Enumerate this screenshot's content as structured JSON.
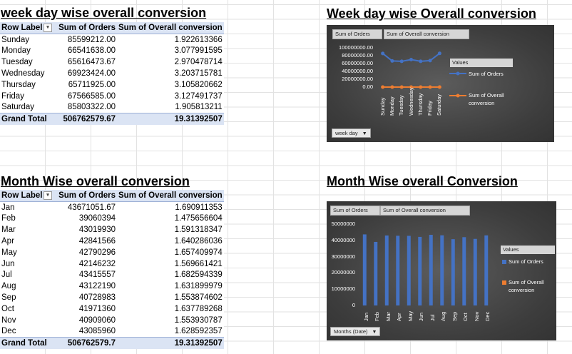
{
  "weekday_section": {
    "title": "week day wise overall conversion",
    "headers": [
      "Row Labels",
      "Sum of Orders",
      "Sum of Overall conversion"
    ],
    "rows": [
      [
        "Sunday",
        "85599212.00",
        "1.922613366"
      ],
      [
        "Monday",
        "66541638.00",
        "3.077991595"
      ],
      [
        "Tuesday",
        "65616473.67",
        "2.970478714"
      ],
      [
        "Wednesday",
        "69923424.00",
        "3.203715781"
      ],
      [
        "Thursday",
        "65711925.00",
        "3.105820662"
      ],
      [
        "Friday",
        "67566585.00",
        "3.127491737"
      ],
      [
        "Saturday",
        "85803322.00",
        "1.905813211"
      ]
    ],
    "total": [
      "Grand Total",
      "506762579.67",
      "19.31392507"
    ]
  },
  "month_section": {
    "title": "Month Wise overall conversion",
    "headers": [
      "Row Labels",
      "Sum of Orders",
      "Sum of Overall conversion"
    ],
    "rows": [
      [
        "Jan",
        "43671051.67",
        "1.690911353"
      ],
      [
        "Feb",
        "39060394",
        "1.475656604"
      ],
      [
        "Mar",
        "43019930",
        "1.591318347"
      ],
      [
        "Apr",
        "42841566",
        "1.640286036"
      ],
      [
        "May",
        "42790296",
        "1.657409974"
      ],
      [
        "Jun",
        "42146232",
        "1.569661421"
      ],
      [
        "Jul",
        "43415557",
        "1.682594339"
      ],
      [
        "Aug",
        "43122190",
        "1.631899979"
      ],
      [
        "Sep",
        "40728983",
        "1.553874602"
      ],
      [
        "Oct",
        "41971360",
        "1.637789268"
      ],
      [
        "Nov",
        "40909060",
        "1.553930787"
      ],
      [
        "Dec",
        "43085960",
        "1.628592357"
      ]
    ],
    "total": [
      "Grand Total",
      "506762579.7",
      "19.31392507"
    ]
  },
  "weekday_chart": {
    "title": "Week day wise Overall conversion",
    "field_buttons": [
      "Sum of Orders",
      "Sum of Overall conversion"
    ],
    "legend_title": "Values",
    "dropdown_label": "week day",
    "y_tick_labels": [
      "100000000.00",
      "80000000.00",
      "60000000.00",
      "40000000.00",
      "20000000.00",
      "0.00"
    ]
  },
  "month_chart": {
    "title": "Month Wise overall Conversion",
    "field_buttons": [
      "Sum of Orders",
      "Sum of Overall conversion"
    ],
    "legend_title": "Values",
    "dropdown_label": "Months (Date)",
    "y_tick_labels": [
      "50000000",
      "40000000",
      "30000000",
      "20000000",
      "10000000",
      "0"
    ]
  },
  "colors": {
    "orders": "#4472c4",
    "conversion": "#ed7d31",
    "header_fill": "#dbe4f4"
  },
  "chart_data": [
    {
      "type": "line",
      "title": "Week day wise Overall conversion",
      "categories": [
        "Sunday",
        "Monday",
        "Tuesday",
        "Wednesday",
        "Thursday",
        "Friday",
        "Saturday"
      ],
      "series": [
        {
          "name": "Sum of Orders",
          "values": [
            85599212,
            66541638,
            65616473.67,
            69923424,
            65711925,
            67566585,
            85803322
          ]
        },
        {
          "name": "Sum of Overall conversion",
          "values": [
            1.922613366,
            3.077991595,
            2.970478714,
            3.203715781,
            3.105820662,
            3.127491737,
            1.905813211
          ]
        }
      ],
      "ylim": [
        0,
        100000000
      ],
      "grid": false,
      "legend": "right"
    },
    {
      "type": "bar",
      "title": "Month Wise overall Conversion",
      "categories": [
        "Jan",
        "Feb",
        "Mar",
        "Apr",
        "May",
        "Jun",
        "Jul",
        "Aug",
        "Sep",
        "Oct",
        "Nov",
        "Dec"
      ],
      "series": [
        {
          "name": "Sum of Orders",
          "values": [
            43671051.67,
            39060394,
            43019930,
            42841566,
            42790296,
            42146232,
            43415557,
            43122190,
            40728983,
            41971360,
            40909060,
            43085960
          ]
        },
        {
          "name": "Sum of Overall conversion",
          "values": [
            1.690911353,
            1.475656604,
            1.591318347,
            1.640286036,
            1.657409974,
            1.569661421,
            1.682594339,
            1.631899979,
            1.553874602,
            1.637789268,
            1.553930787,
            1.628592357
          ]
        }
      ],
      "ylim": [
        0,
        50000000
      ],
      "grid": false,
      "legend": "right"
    }
  ]
}
